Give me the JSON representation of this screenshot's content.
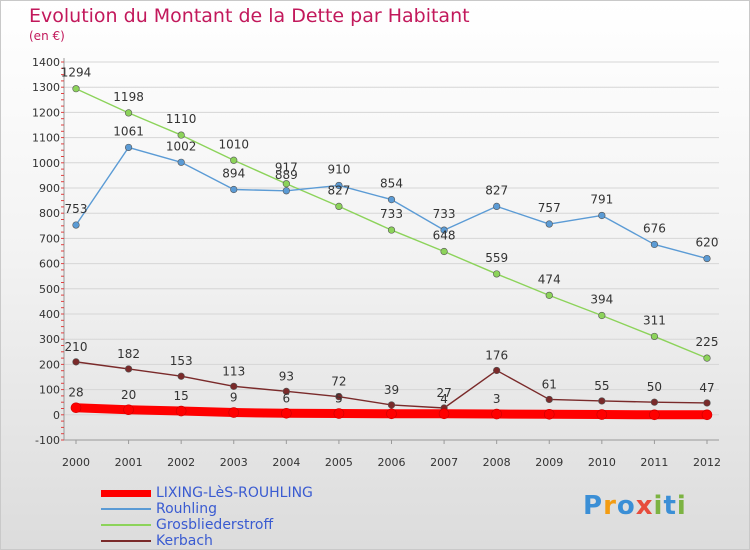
{
  "title": "Evolution du Montant de la Dette par Habitant",
  "subtitle": "(en €)",
  "logo": {
    "letters": [
      "P",
      "r",
      "o",
      "x",
      "i",
      "t",
      "i"
    ],
    "colors": [
      "#3b8fd6",
      "#f39c12",
      "#3b8fd6",
      "#e74c3c",
      "#7cb342",
      "#3b8fd6",
      "#7cb342"
    ]
  },
  "chart_data": {
    "type": "line",
    "x": [
      "2000",
      "2001",
      "2002",
      "2003",
      "2004",
      "2005",
      "2006",
      "2007",
      "2008",
      "2009",
      "2010",
      "2011",
      "2012"
    ],
    "ylim": [
      -100,
      1400
    ],
    "yticks": [
      -100,
      0,
      100,
      200,
      300,
      400,
      500,
      600,
      700,
      800,
      900,
      1000,
      1100,
      1200,
      1300,
      1400
    ],
    "grid": true,
    "legend_position": "bottom-left",
    "series": [
      {
        "name": "LIXING-LèS-ROUHLING",
        "color": "#ff0000",
        "values": [
          28,
          20,
          15,
          9,
          6,
          5,
          4,
          4,
          3,
          2,
          1,
          0,
          0
        ]
      },
      {
        "name": "Rouhling",
        "color": "#5b9bd5",
        "values": [
          753,
          1061,
          1002,
          894,
          889,
          910,
          854,
          733,
          827,
          757,
          791,
          676,
          620
        ]
      },
      {
        "name": "Grosbliederstroff",
        "color": "#8cd35a",
        "values": [
          1294,
          1198,
          1110,
          1010,
          917,
          827,
          733,
          648,
          559,
          474,
          394,
          311,
          225
        ]
      },
      {
        "name": "Kerbach",
        "color": "#7a2a2a",
        "values": [
          210,
          182,
          153,
          113,
          93,
          72,
          39,
          27,
          176,
          61,
          55,
          50,
          47
        ]
      }
    ],
    "data_labels": {
      "LIXING-LèS-ROUHLING": [
        "28",
        "20",
        "15",
        "9",
        "6",
        "5",
        "",
        "4",
        "3",
        "",
        "",
        "",
        ""
      ],
      "Rouhling": [
        "753",
        "1061",
        "1002",
        "894",
        "889",
        "910",
        "854",
        "733",
        "827",
        "757",
        "791",
        "676",
        "620"
      ],
      "Grosbliederstroff": [
        "1294",
        "1198",
        "1110",
        "1010",
        "917",
        "827",
        "733",
        "648",
        "559",
        "474",
        "394",
        "311",
        "225"
      ],
      "Kerbach": [
        "210",
        "182",
        "153",
        "113",
        "93",
        "72",
        "39",
        "27",
        "176",
        "61",
        "55",
        "50",
        "47"
      ]
    }
  }
}
